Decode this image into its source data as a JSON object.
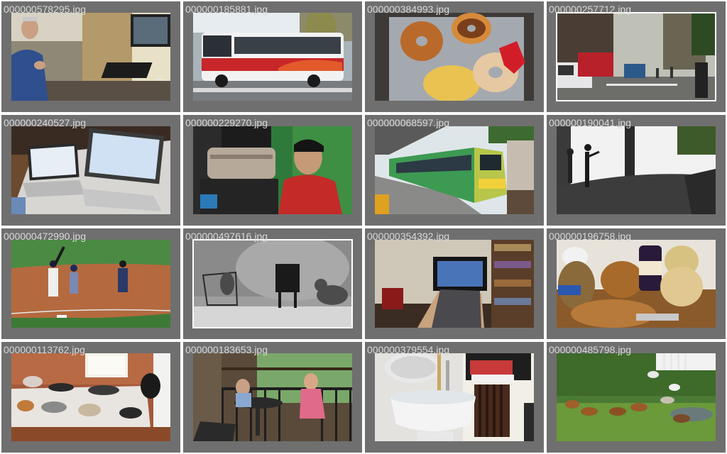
{
  "gallery": {
    "tiles": [
      {
        "filename": "000000578295.jpg"
      },
      {
        "filename": "000000185881.jpg"
      },
      {
        "filename": "000000384993.jpg"
      },
      {
        "filename": "000000257712.jpg"
      },
      {
        "filename": "000000240527.jpg"
      },
      {
        "filename": "000000229270.jpg"
      },
      {
        "filename": "000000068597.jpg"
      },
      {
        "filename": "000000190041.jpg"
      },
      {
        "filename": "000000472990.jpg"
      },
      {
        "filename": "000000497616.jpg"
      },
      {
        "filename": "000000354392.jpg"
      },
      {
        "filename": "000000196758.jpg"
      },
      {
        "filename": "000000113762.jpg"
      },
      {
        "filename": "000000183653.jpg"
      },
      {
        "filename": "000000379554.jpg"
      },
      {
        "filename": "000000485798.jpg"
      }
    ]
  },
  "colors": {
    "tile_background": "#6f6f6f",
    "filename_text": "#d8d8d8",
    "page_background": "#ffffff"
  }
}
